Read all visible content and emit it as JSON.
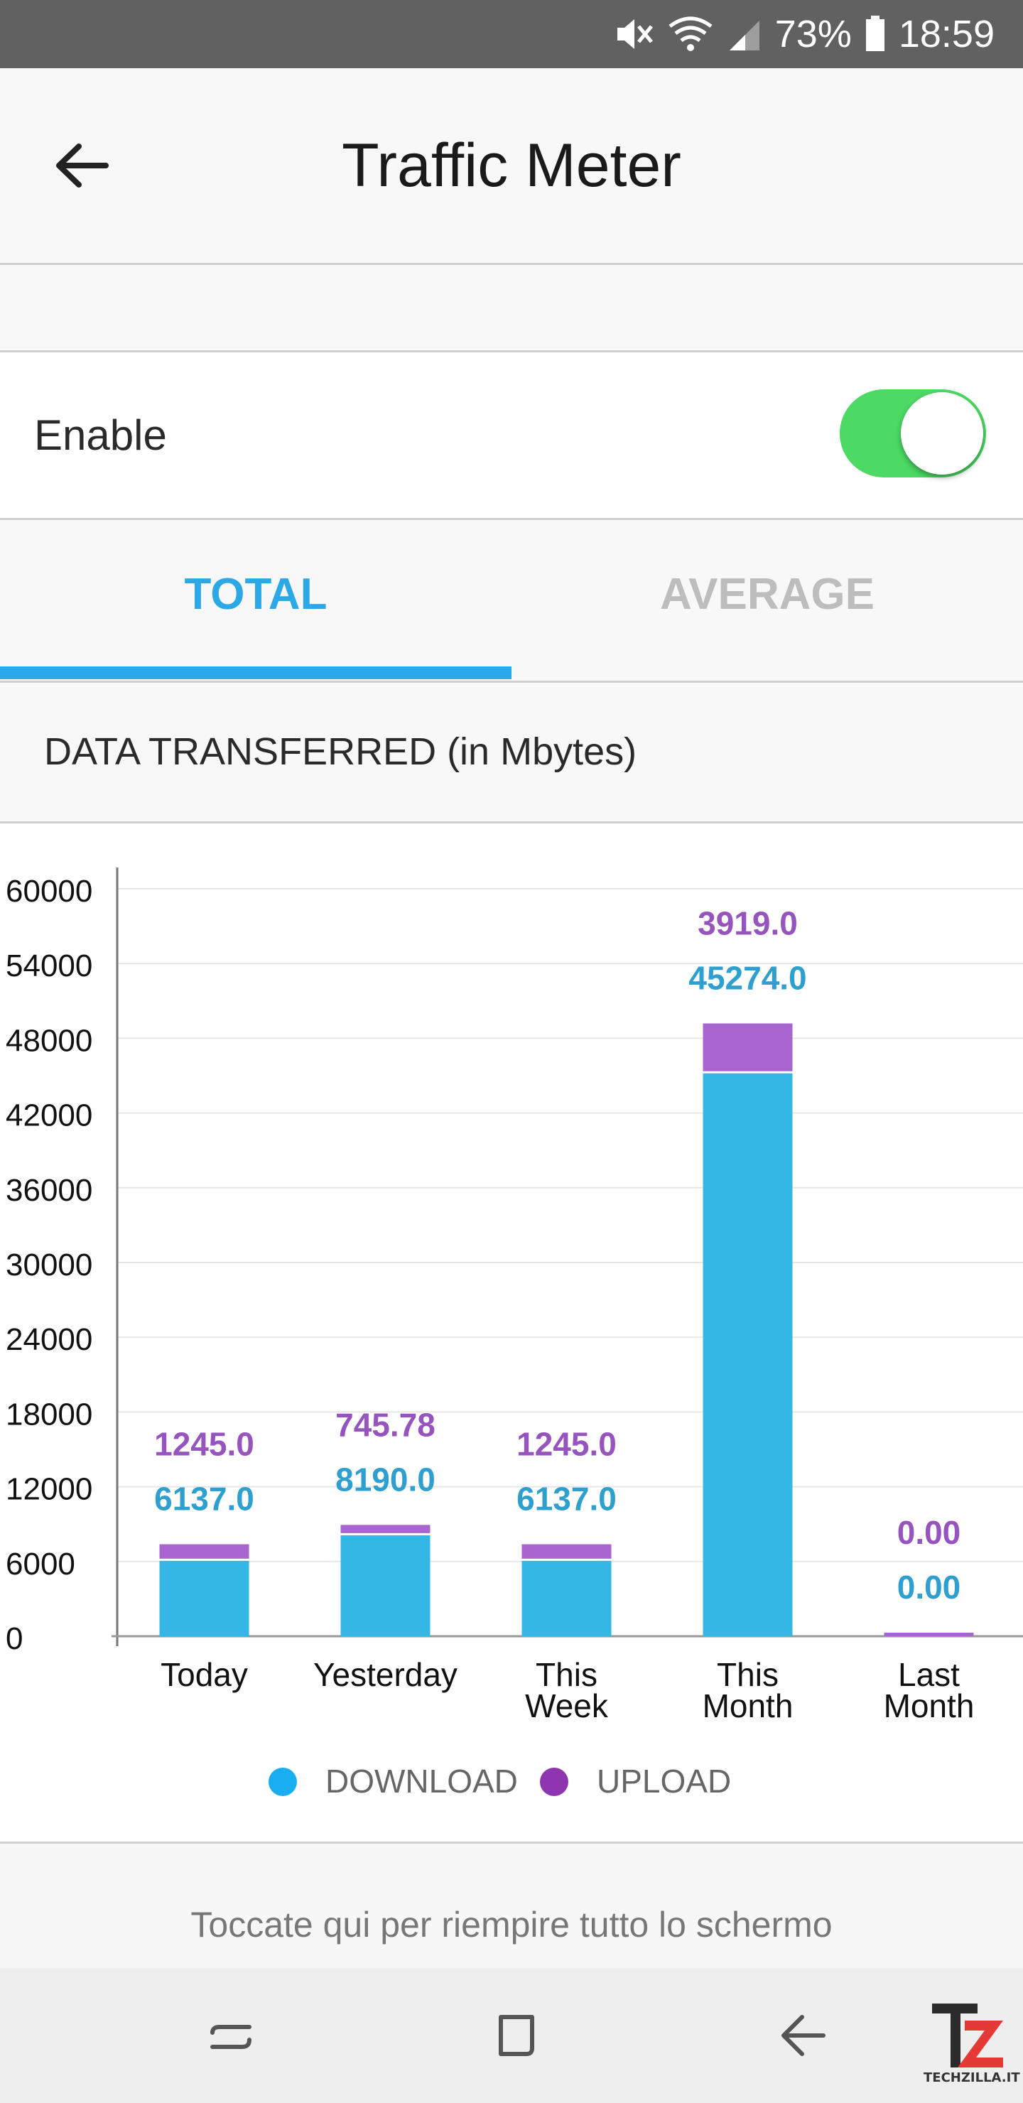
{
  "status_bar": {
    "battery": "73%",
    "time": "18:59"
  },
  "app_bar": {
    "title": "Traffic Meter"
  },
  "enable": {
    "label": "Enable",
    "on": true
  },
  "tabs": [
    {
      "label": "TOTAL",
      "selected": true
    },
    {
      "label": "AVERAGE",
      "selected": false
    }
  ],
  "section": {
    "label": "DATA TRANSFERRED (in Mbytes)"
  },
  "colors": {
    "accent": "#2ca8e6",
    "download": "#35b7e6",
    "upload": "#a865d0",
    "download_label": "#2f9fcf",
    "upload_label": "#9654be",
    "legend_download": "#19aef0",
    "legend_upload": "#8e36b0",
    "toggle": "#4cd964"
  },
  "chart_data": {
    "type": "bar",
    "stacked": true,
    "categories": [
      [
        "Today"
      ],
      [
        "Yesterday"
      ],
      [
        "This",
        "Week"
      ],
      [
        "This",
        "Month"
      ],
      [
        "Last",
        "Month"
      ]
    ],
    "series": [
      {
        "name": "DOWNLOAD",
        "values": [
          6137.0,
          8190.0,
          6137.0,
          45274.0,
          0.0
        ],
        "labels": [
          "6137.0",
          "8190.0",
          "6137.0",
          "45274.0",
          "0.00"
        ]
      },
      {
        "name": "UPLOAD",
        "values": [
          1245.0,
          745.78,
          1245.0,
          3919.0,
          0.0
        ],
        "labels": [
          "1245.0",
          "745.78",
          "1245.0",
          "3919.0",
          "0.00"
        ]
      }
    ],
    "yticks": [
      "0",
      "6000",
      "12000",
      "18000",
      "24000",
      "30000",
      "36000",
      "42000",
      "48000",
      "54000",
      "60000"
    ],
    "ylim": [
      0,
      60000
    ],
    "grid": true,
    "legend_position": "bottom"
  },
  "footer": {
    "text": "Toccate qui per riempire tutto lo schermo"
  },
  "watermark": {
    "text": "TECHZILLA.IT"
  }
}
